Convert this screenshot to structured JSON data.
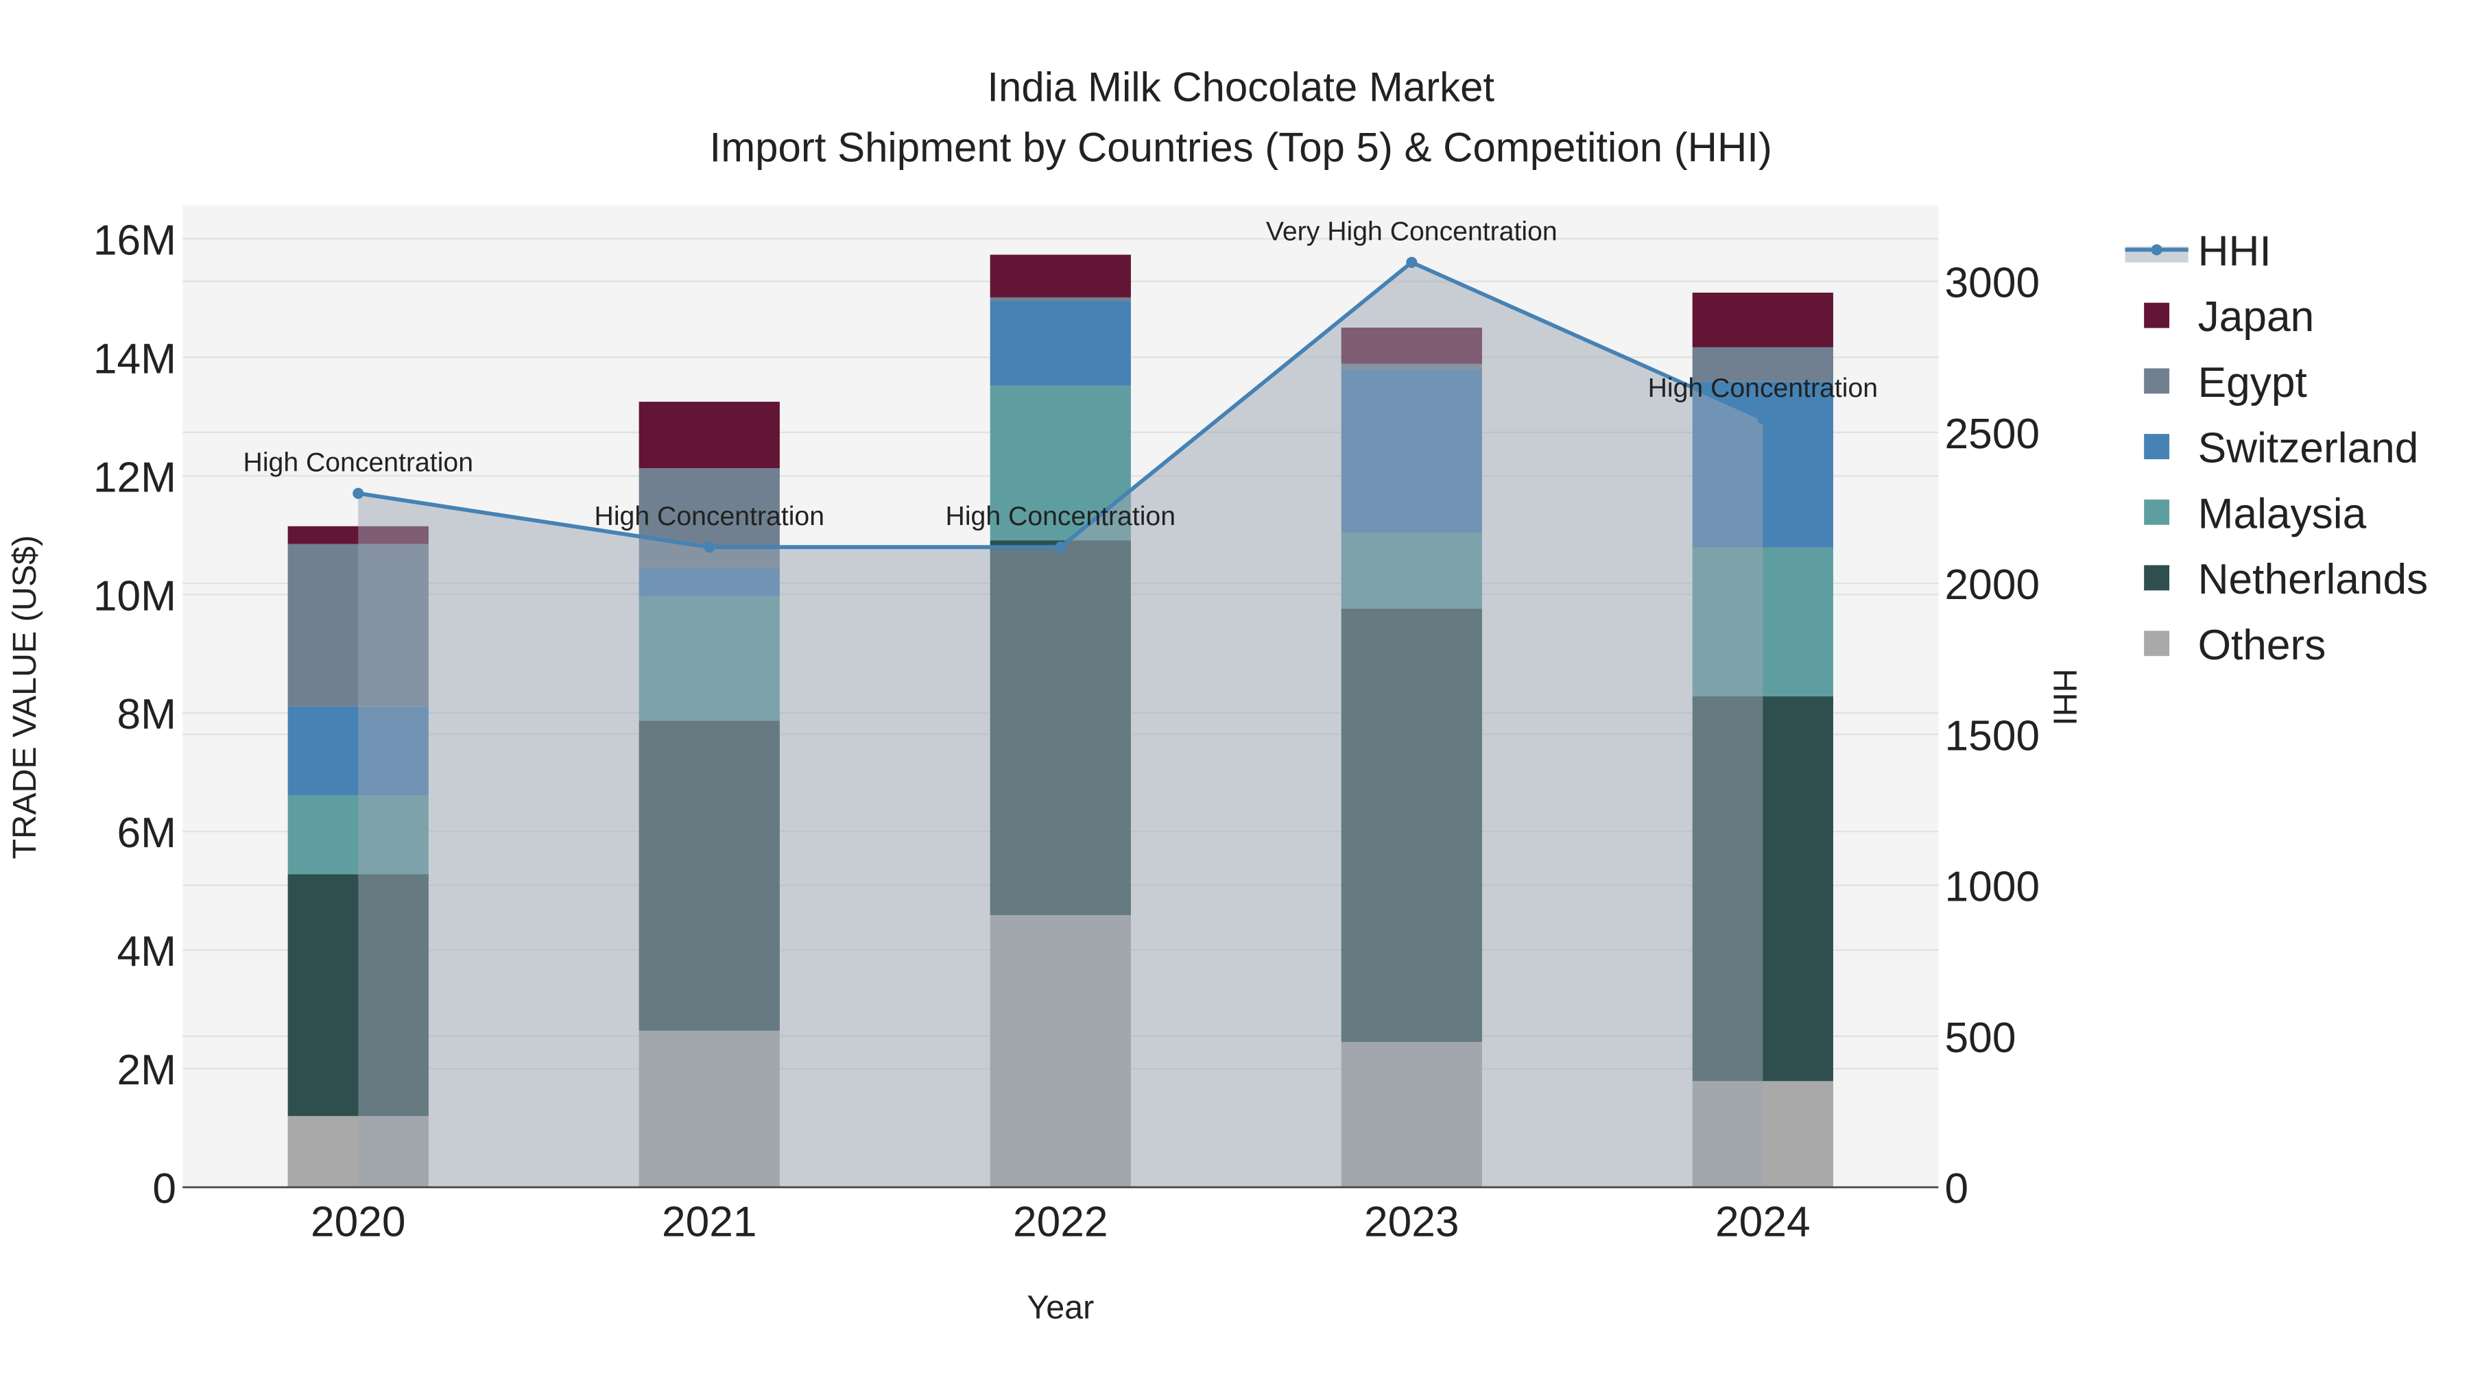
{
  "chart_data": {
    "type": "bar",
    "title": "India Milk Chocolate Market",
    "subtitle": "Import Shipment by Countries (Top 5) & Competition (HHI)",
    "xlabel": "Year",
    "ylabel": "TRADE VALUE (US$)",
    "y2label": "HHI",
    "categories": [
      "2020",
      "2021",
      "2022",
      "2023",
      "2024"
    ],
    "ylim": [
      0,
      16500000
    ],
    "y2lim": [
      0,
      3240
    ],
    "yticks": [
      {
        "v": 0,
        "label": "0"
      },
      {
        "v": 2000000,
        "label": "2M"
      },
      {
        "v": 4000000,
        "label": "4M"
      },
      {
        "v": 6000000,
        "label": "6M"
      },
      {
        "v": 8000000,
        "label": "8M"
      },
      {
        "v": 10000000,
        "label": "10M"
      },
      {
        "v": 12000000,
        "label": "12M"
      },
      {
        "v": 14000000,
        "label": "14M"
      },
      {
        "v": 16000000,
        "label": "16M"
      }
    ],
    "y2ticks": [
      {
        "v": 0,
        "label": "0"
      },
      {
        "v": 500,
        "label": "500"
      },
      {
        "v": 1000,
        "label": "1000"
      },
      {
        "v": 1500,
        "label": "1500"
      },
      {
        "v": 2000,
        "label": "2000"
      },
      {
        "v": 2500,
        "label": "2500"
      },
      {
        "v": 3000,
        "label": "3000"
      }
    ],
    "grid": true,
    "legend_position": "right",
    "series": [
      {
        "name": "Others",
        "color": "#A9A9A9",
        "values": [
          1200000,
          2640000,
          4590000,
          2450000,
          1790000
        ]
      },
      {
        "name": "Netherlands",
        "color": "#2F4F4F",
        "values": [
          4080000,
          5230000,
          6320000,
          7310000,
          6490000
        ]
      },
      {
        "name": "Malaysia",
        "color": "#5F9EA0",
        "values": [
          1330000,
          2100000,
          2610000,
          1280000,
          2510000
        ]
      },
      {
        "name": "Switzerland",
        "color": "#4682B4",
        "values": [
          1500000,
          480000,
          1430000,
          2750000,
          2800000
        ]
      },
      {
        "name": "Egypt",
        "color": "#708090",
        "values": [
          2740000,
          1680000,
          60000,
          100000,
          580000
        ]
      },
      {
        "name": "Japan",
        "color": "#631535",
        "values": [
          300000,
          1120000,
          720000,
          610000,
          920000
        ]
      }
    ],
    "hhi": {
      "name": "HHI",
      "color": "#4682B4",
      "values": [
        2298,
        2120,
        2120,
        3063,
        2545
      ],
      "annotations": [
        "High Concentration",
        "High Concentration",
        "High Concentration",
        "Very High Concentration",
        "High Concentration"
      ]
    },
    "legend_order": [
      "HHI",
      "Japan",
      "Egypt",
      "Switzerland",
      "Malaysia",
      "Netherlands",
      "Others"
    ]
  }
}
